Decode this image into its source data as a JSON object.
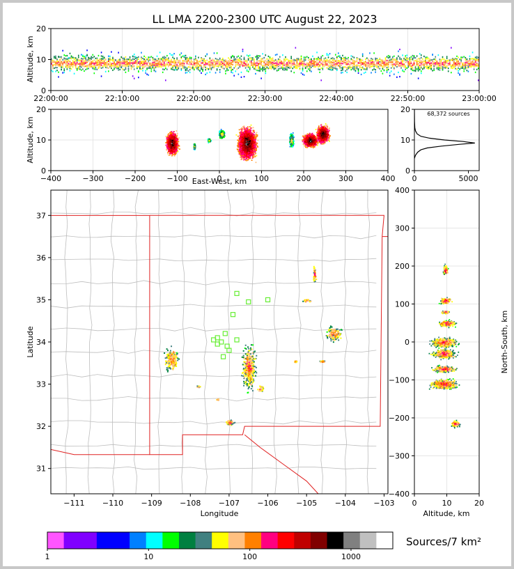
{
  "title": "LL LMA 2200-2300 UTC August 22, 2023",
  "chart_data": [
    {
      "id": "time_height",
      "type": "heatmap",
      "xlabel": "",
      "ylabel": "Altitude, km",
      "x_ticks": [
        "22:00:00",
        "22:10:00",
        "22:20:00",
        "22:30:00",
        "22:40:00",
        "22:50:00",
        "23:00:00"
      ],
      "xlim": [
        "22:00:00",
        "23:00:00"
      ],
      "ylim": [
        0,
        20
      ],
      "y_ticks": [
        0,
        10,
        20
      ]
    },
    {
      "id": "ew_altitude",
      "type": "heatmap",
      "xlabel": "East-West, km",
      "ylabel": "Altitude, km",
      "xlim": [
        -400,
        400
      ],
      "ylim": [
        0,
        20
      ],
      "x_ticks": [
        -400,
        -300,
        -200,
        -100,
        0,
        100,
        200,
        300,
        400
      ],
      "y_ticks": [
        0,
        10,
        20
      ],
      "cells": [
        {
          "x": -113,
          "z": 9,
          "w": 40,
          "h": 10
        },
        {
          "x": -60,
          "z": 8,
          "w": 6,
          "h": 3
        },
        {
          "x": -25,
          "z": 10,
          "w": 10,
          "h": 2
        },
        {
          "x": 5,
          "z": 12,
          "w": 20,
          "h": 4
        },
        {
          "x": 65,
          "z": 9,
          "w": 60,
          "h": 14
        },
        {
          "x": 170,
          "z": 10,
          "w": 14,
          "h": 6
        },
        {
          "x": 215,
          "z": 10,
          "w": 50,
          "h": 6
        },
        {
          "x": 245,
          "z": 12,
          "w": 40,
          "h": 8
        }
      ]
    },
    {
      "id": "altitude_histogram",
      "type": "line",
      "annotation": "68,372 sources",
      "xlim": [
        0,
        6000
      ],
      "ylim": [
        0,
        20
      ],
      "x_ticks": [
        0,
        5000
      ],
      "y_ticks": [
        0,
        10,
        20
      ],
      "x": [
        0,
        100,
        300,
        600,
        1200,
        2500,
        4200,
        5600,
        4500,
        2800,
        1400,
        600,
        250,
        100,
        40,
        10,
        0
      ],
      "y": [
        4,
        5,
        6,
        6.8,
        7.4,
        8,
        8.6,
        9,
        9.5,
        10,
        10.6,
        11.2,
        12,
        13,
        14,
        16,
        20
      ]
    },
    {
      "id": "plan_view",
      "type": "scatter",
      "xlabel": "Longitude",
      "ylabel": "Latitude",
      "xlim": [
        -111.6,
        -102.9
      ],
      "ylim": [
        30.4,
        37.6
      ],
      "x_ticks": [
        -111,
        -110,
        -109,
        -108,
        -107,
        -106,
        -105,
        -104,
        -103
      ],
      "y_ticks": [
        31,
        32,
        33,
        34,
        35,
        36,
        37
      ],
      "clusters": [
        {
          "lon": -108.5,
          "lat": 33.6,
          "w": 0.4,
          "h": 0.6
        },
        {
          "lon": -107.8,
          "lat": 32.95,
          "w": 0.1,
          "h": 0.05
        },
        {
          "lon": -107.3,
          "lat": 32.65,
          "w": 0.08,
          "h": 0.05
        },
        {
          "lon": -107.0,
          "lat": 32.1,
          "w": 0.35,
          "h": 0.15
        },
        {
          "lon": -106.5,
          "lat": 33.4,
          "w": 0.4,
          "h": 1.2
        },
        {
          "lon": -106.2,
          "lat": 32.9,
          "w": 0.2,
          "h": 0.2
        },
        {
          "lon": -105.3,
          "lat": 33.55,
          "w": 0.1,
          "h": 0.05
        },
        {
          "lon": -105.0,
          "lat": 35.0,
          "w": 0.25,
          "h": 0.1
        },
        {
          "lon": -104.8,
          "lat": 35.6,
          "w": 0.1,
          "h": 0.5
        },
        {
          "lon": -104.3,
          "lat": 34.2,
          "w": 0.45,
          "h": 0.4
        },
        {
          "lon": -104.6,
          "lat": 33.55,
          "w": 0.2,
          "h": 0.08
        }
      ],
      "stations": [
        {
          "lon": -107.4,
          "lat": 34.05
        },
        {
          "lon": -107.3,
          "lat": 34.1
        },
        {
          "lon": -107.2,
          "lat": 34.0
        },
        {
          "lon": -107.1,
          "lat": 34.2
        },
        {
          "lon": -107.05,
          "lat": 33.9
        },
        {
          "lon": -107.0,
          "lat": 33.8
        },
        {
          "lon": -107.15,
          "lat": 33.65
        },
        {
          "lon": -106.8,
          "lat": 34.05
        },
        {
          "lon": -106.9,
          "lat": 34.65
        },
        {
          "lon": -106.8,
          "lat": 35.15
        },
        {
          "lon": -106.5,
          "lat": 34.95
        },
        {
          "lon": -106.0,
          "lat": 35.0
        },
        {
          "lon": -107.3,
          "lat": 33.95
        }
      ]
    },
    {
      "id": "ns_altitude",
      "type": "heatmap",
      "xlabel": "Altitude, km",
      "ylabel": "North-South, km",
      "xlim": [
        0,
        20
      ],
      "ylim": [
        -400,
        400
      ],
      "x_ticks": [
        0,
        10,
        20
      ],
      "y_ticks": [
        -400,
        -300,
        -200,
        -100,
        0,
        100,
        200,
        300,
        400
      ],
      "cells": [
        {
          "z": 9.5,
          "y": 190,
          "w": 2,
          "h": 30
        },
        {
          "z": 9.5,
          "y": 110,
          "w": 5,
          "h": 20
        },
        {
          "z": 9.5,
          "y": 80,
          "w": 4,
          "h": 10
        },
        {
          "z": 10,
          "y": 50,
          "w": 7,
          "h": 20
        },
        {
          "z": 9,
          "y": 0,
          "w": 11,
          "h": 30
        },
        {
          "z": 9,
          "y": -30,
          "w": 10,
          "h": 30
        },
        {
          "z": 9,
          "y": -70,
          "w": 10,
          "h": 20
        },
        {
          "z": 9,
          "y": -110,
          "w": 12,
          "h": 30
        },
        {
          "z": 12.5,
          "y": -215,
          "w": 4,
          "h": 20
        }
      ]
    },
    {
      "id": "colorbar",
      "type": "table",
      "label": "Sources/7 km²",
      "tick_labels": [
        "1",
        "10",
        "100",
        "1000"
      ],
      "colors": [
        "#ff55ff",
        "#8000ff",
        "#8000ff",
        "#0000ff",
        "#0000ff",
        "#0080ff",
        "#00ffff",
        "#00ff00",
        "#008040",
        "#408080",
        "#ffff00",
        "#ffc080",
        "#ff8000",
        "#ff0080",
        "#ff0000",
        "#c00000",
        "#800000",
        "#000000",
        "#808080",
        "#c0c0c0",
        "#ffffff"
      ]
    }
  ]
}
